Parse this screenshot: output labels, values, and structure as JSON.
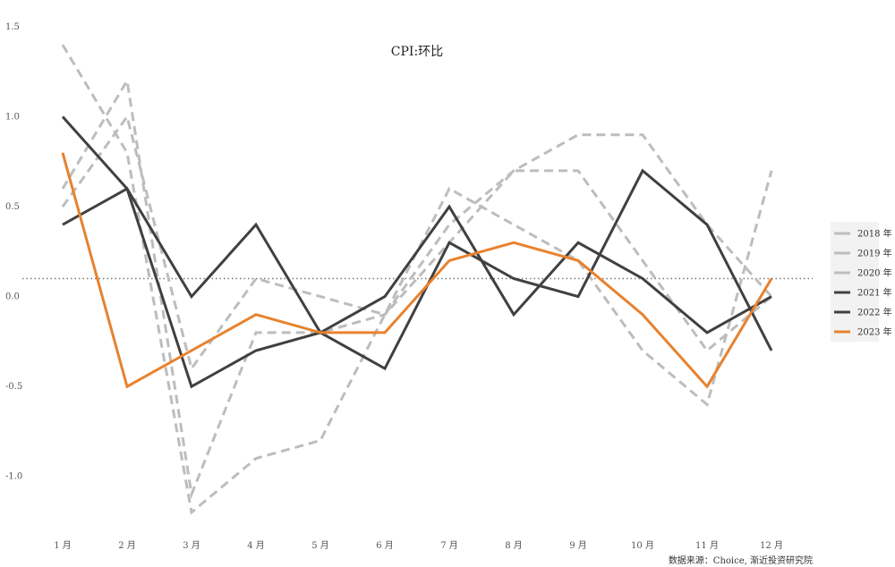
{
  "chart_data": {
    "type": "line",
    "title": "CPI:环比",
    "xlabel": "",
    "ylabel": "",
    "categories": [
      "1 月",
      "2 月",
      "3 月",
      "4 月",
      "5 月",
      "6 月",
      "7 月",
      "8 月",
      "9 月",
      "10 月",
      "11 月",
      "12 月"
    ],
    "yticks": [
      "1.5",
      "1.0",
      "0.5",
      "0.0",
      "-0.5",
      "-1.0"
    ],
    "ytick_values": [
      1.5,
      1.0,
      0.5,
      0.0,
      -0.5,
      -1.0
    ],
    "ylim": [
      -1.25,
      1.5
    ],
    "reference_line": 0.1,
    "grid": false,
    "legend_position": "right",
    "series": [
      {
        "name": "2018 年",
        "color": "#bdbdbd",
        "style": "dashed",
        "values": [
          0.6,
          1.2,
          -1.1,
          -0.2,
          -0.2,
          -0.1,
          0.3,
          0.7,
          0.7,
          0.2,
          -0.3,
          0.0
        ]
      },
      {
        "name": "2019 年",
        "color": "#bdbdbd",
        "style": "dashed",
        "values": [
          0.5,
          1.0,
          -0.4,
          0.1,
          0.0,
          -0.1,
          0.4,
          0.7,
          0.9,
          0.9,
          0.4,
          0.0
        ]
      },
      {
        "name": "2020 年",
        "color": "#bdbdbd",
        "style": "dashed",
        "values": [
          1.4,
          0.8,
          -1.2,
          -0.9,
          -0.8,
          -0.1,
          0.6,
          0.4,
          0.2,
          -0.3,
          -0.6,
          0.7
        ]
      },
      {
        "name": "2021 年",
        "color": "#404040",
        "style": "solid",
        "values": [
          1.0,
          0.6,
          -0.5,
          -0.3,
          -0.2,
          -0.4,
          0.3,
          0.1,
          0.0,
          0.7,
          0.4,
          -0.3
        ]
      },
      {
        "name": "2022 年",
        "color": "#404040",
        "style": "solid",
        "values": [
          0.4,
          0.6,
          0.0,
          0.4,
          -0.2,
          0.0,
          0.5,
          -0.1,
          0.3,
          0.1,
          -0.2,
          0.0
        ]
      },
      {
        "name": "2023 年",
        "color": "#e8822e",
        "style": "solid",
        "values": [
          0.8,
          -0.5,
          -0.3,
          -0.1,
          -0.2,
          -0.2,
          0.2,
          0.3,
          0.2,
          -0.1,
          -0.5,
          0.1
        ]
      }
    ]
  },
  "source": "数据来源：Choice, 渐近投资研究院"
}
